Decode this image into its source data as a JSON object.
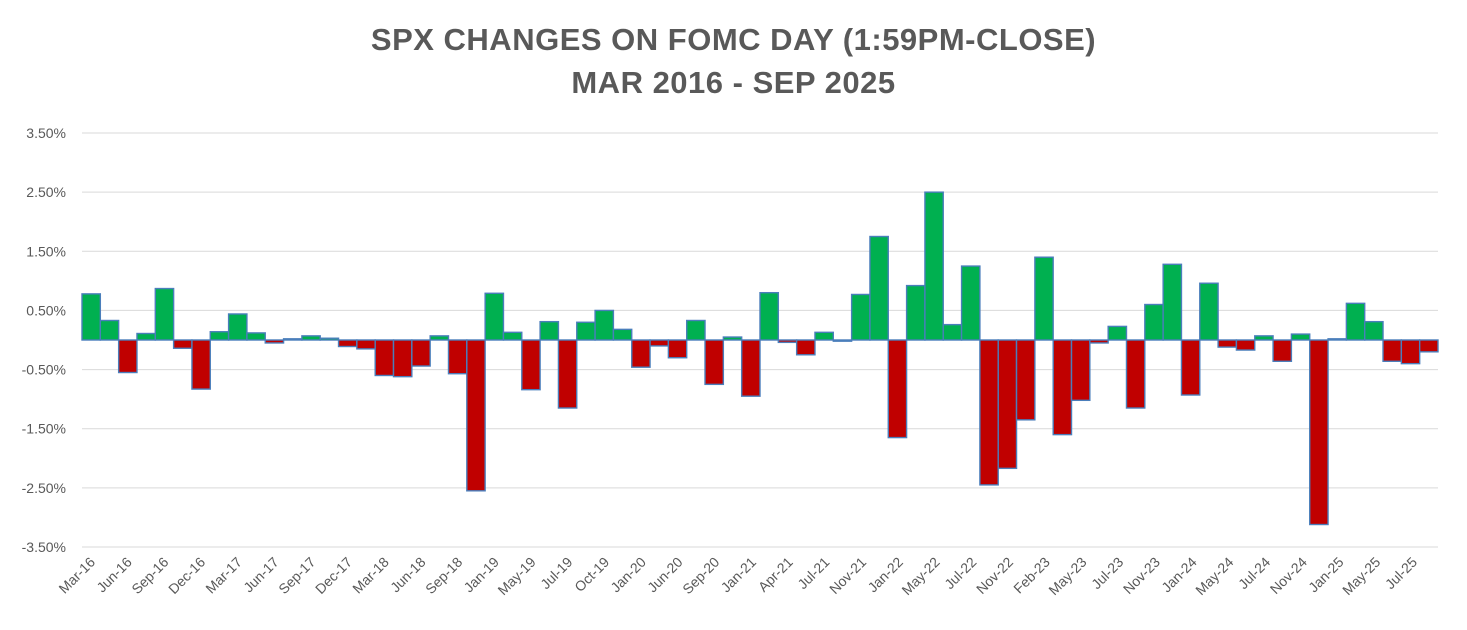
{
  "chart_data": {
    "type": "bar",
    "title": "SPX CHANGES ON FOMC DAY (1:59PM-CLOSE)",
    "subtitle": "MAR 2016 - SEP 2025",
    "xlabel": "",
    "ylabel": "",
    "ylim": [
      -3.5,
      3.5
    ],
    "y_ticks": [
      "3.50%",
      "2.50%",
      "1.50%",
      "0.50%",
      "-0.50%",
      "-1.50%",
      "-2.50%",
      "-3.50%"
    ],
    "y_tick_values": [
      3.5,
      2.5,
      1.5,
      0.5,
      -0.5,
      -1.5,
      -2.5,
      -3.5
    ],
    "x_tick_labels": [
      "Mar-16",
      "Jun-16",
      "Sep-16",
      "Dec-16",
      "Mar-17",
      "Jun-17",
      "Sep-17",
      "Dec-17",
      "Mar-18",
      "Jun-18",
      "Sep-18",
      "Jan-19",
      "May-19",
      "Jul-19",
      "Oct-19",
      "Jan-20",
      "Jun-20",
      "Sep-20",
      "Jan-21",
      "Apr-21",
      "Jul-21",
      "Nov-21",
      "Jan-22",
      "May-22",
      "Jul-22",
      "Nov-22",
      "Feb-23",
      "May-23",
      "Jul-23",
      "Nov-23",
      "Jan-24",
      "May-24",
      "Jul-24",
      "Nov-24",
      "Jan-25",
      "May-25",
      "Jul-25"
    ],
    "values": [
      0.78,
      0.33,
      -0.55,
      0.11,
      0.87,
      -0.14,
      -0.83,
      0.14,
      0.44,
      0.12,
      -0.05,
      0.02,
      0.07,
      0.03,
      -0.11,
      -0.15,
      -0.6,
      -0.62,
      -0.44,
      0.07,
      -0.57,
      -2.55,
      0.79,
      0.13,
      -0.84,
      0.31,
      -1.15,
      0.3,
      0.5,
      0.18,
      -0.46,
      -0.1,
      -0.3,
      0.33,
      -0.75,
      0.05,
      -0.95,
      0.8,
      -0.04,
      -0.25,
      0.13,
      -0.02,
      0.77,
      1.75,
      -1.65,
      0.92,
      2.5,
      0.26,
      1.25,
      -2.45,
      -2.17,
      -1.35,
      1.4,
      -1.6,
      -1.02,
      -0.05,
      0.23,
      -1.15,
      0.6,
      1.28,
      -0.93,
      0.96,
      -0.12,
      -0.17,
      0.07,
      -0.36,
      0.1,
      -3.12,
      0.02,
      0.62,
      0.31,
      -0.36,
      -0.4,
      -0.2
    ],
    "colors": {
      "positive": "#00b050",
      "negative": "#c00000",
      "bar_border": "#4a7ebb",
      "grid": "#d9d9d9",
      "tick_text": "#595959",
      "title": "#595959"
    },
    "grid": true,
    "legend": "none"
  }
}
